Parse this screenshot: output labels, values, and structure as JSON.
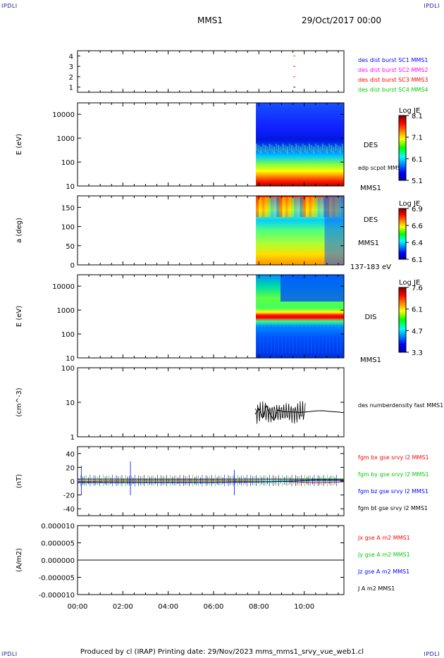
{
  "corners": {
    "tl": "IPDLI",
    "tr": "IPDLI",
    "bl": "IPDLI",
    "br": "IPDLI"
  },
  "header": {
    "spacecraft": "MMS1",
    "date": "29/Oct/2017 00:00"
  },
  "footer": {
    "text": "Produced by cl (IRAP)   Printing date: 29/Nov/2023   mms_mms1_srvy_vue_web1.cl"
  },
  "colors": {
    "blue": "#0000ff",
    "magenta": "#ff00ff",
    "red": "#ff0000",
    "green": "#00cc00",
    "black": "#000000"
  },
  "chart_data": [
    {
      "type": "scatter",
      "panel": "burst",
      "yticks": [
        "1",
        "2",
        "3",
        "4"
      ],
      "ylim": [
        0.5,
        4.5
      ],
      "series": [
        {
          "name": "des dist burst SC1 MMS1",
          "color": "#0000ff",
          "x": [
            "09:33"
          ],
          "y": [
            1
          ]
        },
        {
          "name": "des dist burst SC2 MMS2",
          "color": "#ff00ff",
          "x": [
            "09:33"
          ],
          "y": [
            2
          ]
        },
        {
          "name": "des dist burst SC3 MMS3",
          "color": "#ff0000",
          "x": [
            "09:33"
          ],
          "y": [
            3
          ]
        },
        {
          "name": "des dist burst SC4 MMS4",
          "color": "#00cc00",
          "x": [
            "09:33"
          ],
          "y": [
            4
          ]
        }
      ]
    },
    {
      "type": "heatmap",
      "panel": "des-energy",
      "ylabel": "E (eV)",
      "yscale": "log",
      "ylim": [
        10,
        30000
      ],
      "yticks": [
        "10",
        "100",
        "1000",
        "10000"
      ],
      "label": "DES",
      "sublabel": "edp scpot MMS1",
      "bottom_label": "MMS1",
      "colorbar": {
        "title": "Log JE",
        "ticks": [
          "8.1",
          "7.1",
          "6.1",
          "5.1"
        ],
        "range": [
          5.1,
          8.1
        ]
      },
      "data_start": "07:52"
    },
    {
      "type": "heatmap",
      "panel": "des-pitch",
      "ylabel": "a (deg)",
      "ylim": [
        0,
        180
      ],
      "yticks": [
        "0",
        "50",
        "100",
        "150"
      ],
      "label": "DES",
      "sublabel": "MMS1",
      "bottom_label": "137-183 eV",
      "colorbar": {
        "title": "Log JE",
        "ticks": [
          "6.9",
          "6.6",
          "6.4",
          "6.1"
        ],
        "range": [
          6.1,
          6.9
        ]
      },
      "data_start": "07:52"
    },
    {
      "type": "heatmap",
      "panel": "dis-energy",
      "ylabel": "E (eV)",
      "yscale": "log",
      "ylim": [
        10,
        30000
      ],
      "yticks": [
        "10",
        "100",
        "1000",
        "10000"
      ],
      "label": "DIS",
      "bottom_label": "MMS1",
      "colorbar": {
        "title": "Log JE",
        "ticks": [
          "7.6",
          "6.1",
          "4.7",
          "3.3"
        ],
        "range": [
          3.3,
          7.6
        ]
      },
      "data_start": "07:52"
    },
    {
      "type": "line",
      "panel": "density",
      "ylabel": "(cm^-3)",
      "yscale": "log",
      "ylim": [
        1,
        100
      ],
      "yticks": [
        "1",
        "10",
        "100"
      ],
      "series": [
        {
          "name": "des numberdensity fast MMS1",
          "color": "#000000",
          "x": [
            "07:50",
            "08:00",
            "08:10",
            "08:20",
            "08:30",
            "08:40",
            "08:50",
            "09:00",
            "09:10",
            "09:30",
            "09:50",
            "10:10",
            "10:30",
            "10:50",
            "11:10",
            "11:30",
            "11:45"
          ],
          "y": [
            4.5,
            6.5,
            3.5,
            8,
            4.5,
            3,
            6,
            5.5,
            5.3,
            5.2,
            5.1,
            5.3,
            5.6,
            5.7,
            5.4,
            5.2,
            5.0
          ]
        }
      ]
    },
    {
      "type": "line",
      "panel": "magnetic-field",
      "ylabel": "(nT)",
      "ylim": [
        -50,
        50
      ],
      "yticks": [
        "-40",
        "-20",
        "0",
        "20",
        "40"
      ],
      "series": [
        {
          "name": "fgm bx gse srvy l2 MMS1",
          "color": "#ff0000",
          "x": [
            "00:00",
            "03:00",
            "06:00",
            "08:30",
            "09:30",
            "10:30",
            "11:45"
          ],
          "y": [
            0,
            1,
            1,
            0,
            -1,
            -2,
            -1
          ]
        },
        {
          "name": "fgm by gse srvy l2 MMS1",
          "color": "#00cc00",
          "x": [
            "00:00",
            "03:00",
            "06:00",
            "08:30",
            "09:30",
            "10:30",
            "11:45"
          ],
          "y": [
            -1,
            -1,
            -1,
            0,
            1,
            2,
            2
          ]
        },
        {
          "name": "fgm bz gse srvy l2 MMS1",
          "color": "#0000ff",
          "x": [
            "00:00",
            "03:00",
            "06:00",
            "08:30",
            "09:30",
            "10:30",
            "11:45"
          ],
          "y": [
            -2,
            -2,
            -2,
            -1,
            0,
            1,
            1
          ]
        },
        {
          "name": "fgm bt gse srvy l2 MMS1",
          "color": "#000000",
          "x": [
            "00:00",
            "03:00",
            "06:00",
            "08:30",
            "09:30",
            "10:30",
            "11:45"
          ],
          "y": [
            3,
            3,
            3,
            3,
            3,
            3,
            3
          ]
        }
      ]
    },
    {
      "type": "line",
      "panel": "current-density",
      "ylabel": "(A/m2)",
      "ylim": [
        -1e-05,
        1e-05
      ],
      "yticks": [
        "-0.000010",
        "-0.000005",
        "0.000000",
        "0.000005",
        "0.000010"
      ],
      "series": [
        {
          "name": "Jx gse A m2 MMS1",
          "color": "#ff0000",
          "x": [
            "00:00",
            "11:45"
          ],
          "y": [
            0,
            0
          ]
        },
        {
          "name": "Jy gse A m2 MMS1",
          "color": "#00cc00",
          "x": [
            "00:00",
            "11:45"
          ],
          "y": [
            0,
            0
          ]
        },
        {
          "name": "Jz gse A m2 MMS1",
          "color": "#0000ff",
          "x": [
            "00:00",
            "11:45"
          ],
          "y": [
            0,
            0
          ]
        },
        {
          "name": "J A m2 MMS1",
          "color": "#000000",
          "x": [
            "00:00",
            "11:45"
          ],
          "y": [
            0,
            0
          ]
        }
      ]
    }
  ],
  "xaxis": {
    "ticks": [
      "00:00",
      "02:00",
      "04:00",
      "06:00",
      "08:00",
      "10:00"
    ],
    "range": [
      "00:00",
      "11:45"
    ]
  }
}
